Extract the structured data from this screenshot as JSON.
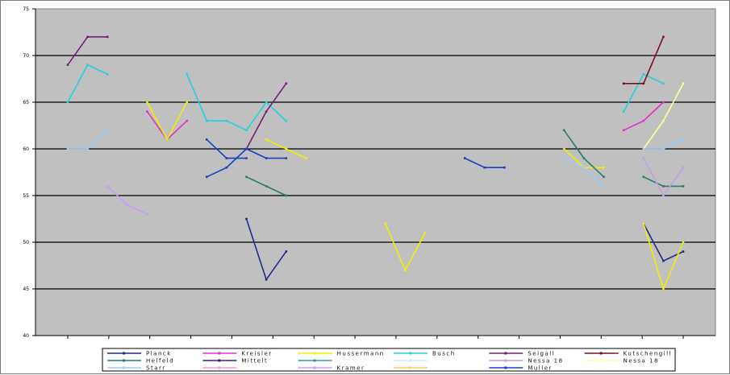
{
  "chart_data": {
    "type": "line",
    "title": "",
    "xlabel": "",
    "ylabel": "",
    "ylim": [
      40,
      75
    ],
    "y_ticks": [
      "40",
      "45",
      "50",
      "55",
      "60",
      "65",
      "70",
      "75"
    ],
    "x_ticks": [
      "",
      "",
      "",
      "",
      "",
      "",
      "",
      "",
      "",
      "",
      "",
      "",
      "",
      "",
      "",
      ""
    ],
    "grid": true,
    "background": "#c0c0c0",
    "legend_position": "bottom",
    "series": [
      {
        "name": "Planck",
        "color": "#1f2a8a",
        "marker": "triangle",
        "points": [
          [
            9.0,
            52.5
          ],
          [
            10.0,
            46.0
          ],
          [
            11.0,
            49.0
          ],
          [
            29.0,
            52.0
          ],
          [
            30.0,
            48.0
          ],
          [
            31.0,
            49.0
          ]
        ]
      },
      {
        "name": "Kreisler",
        "color": "#e033cc",
        "points": [
          [
            4.0,
            64.0
          ],
          [
            5.0,
            61.0
          ],
          [
            6.0,
            63.0
          ],
          [
            28.0,
            62.0
          ],
          [
            29.0,
            63.0
          ],
          [
            30.0,
            65.0
          ]
        ]
      },
      {
        "name": "Hussermann",
        "color": "#f0ef00",
        "points": [
          [
            4.0,
            65.0
          ],
          [
            5.0,
            61.0
          ],
          [
            6.0,
            65.0
          ],
          [
            10.0,
            61.0
          ],
          [
            11.0,
            60.0
          ],
          [
            12.0,
            59.0
          ],
          [
            16.0,
            52.0
          ],
          [
            17.0,
            47.0
          ],
          [
            18.0,
            51.0
          ],
          [
            25.0,
            60.0
          ],
          [
            26.0,
            58.0
          ],
          [
            27.0,
            58.0
          ],
          [
            29.0,
            52.0
          ],
          [
            30.0,
            45.0
          ],
          [
            31.0,
            50.0
          ]
        ]
      },
      {
        "name": "Busch",
        "color": "#22d2e0",
        "points": [
          [
            0.0,
            65.0
          ],
          [
            1.0,
            69.0
          ],
          [
            2.0,
            68.0
          ],
          [
            6.0,
            68.0
          ],
          [
            7.0,
            63.0
          ],
          [
            8.0,
            63.0
          ],
          [
            9.0,
            62.0
          ],
          [
            10.0,
            65.0
          ],
          [
            11.0,
            63.0
          ],
          [
            28.0,
            64.0
          ],
          [
            29.0,
            68.0
          ],
          [
            30.0,
            67.0
          ]
        ]
      },
      {
        "name": "Seigall",
        "color": "#7a1a7a",
        "points": [
          [
            0.0,
            69.0
          ],
          [
            1.0,
            72.0
          ],
          [
            2.0,
            72.0
          ],
          [
            9.0,
            60.0
          ],
          [
            10.0,
            64.0
          ],
          [
            11.0,
            67.0
          ]
        ]
      },
      {
        "name": "Kutschengill",
        "color": "#7a1020",
        "points": [
          [
            28.0,
            67.0
          ],
          [
            29.0,
            67.0
          ],
          [
            30.0,
            72.0
          ]
        ]
      },
      {
        "name": "Helfeld",
        "color": "#2a7a6a",
        "points": [
          [
            9.0,
            57.0
          ],
          [
            10.0,
            56.0
          ],
          [
            11.0,
            55.0
          ],
          [
            25.0,
            62.0
          ],
          [
            26.0,
            59.0
          ],
          [
            27.0,
            57.0
          ],
          [
            29.0,
            57.0
          ],
          [
            30.0,
            56.0
          ],
          [
            31.0,
            56.0
          ]
        ]
      },
      {
        "name": "Mittelt",
        "color": "#3a1a8a",
        "points": []
      },
      {
        "name": "",
        "color": "#2aa0a0",
        "points": []
      },
      {
        "name": "",
        "color": "#c8f0f8",
        "points": []
      },
      {
        "name": "Nessa 18",
        "color": "#c3a0e0",
        "points": [
          [
            29.0,
            59.0
          ],
          [
            30.0,
            55.0
          ],
          [
            31.0,
            58.0
          ]
        ]
      },
      {
        "name": "Nessa 18",
        "color": "#ffff99",
        "points": [
          [
            29.0,
            60.0
          ],
          [
            30.0,
            63.0
          ],
          [
            31.0,
            67.0
          ]
        ]
      },
      {
        "name": "Starr",
        "color": "#99ccff",
        "points": [
          [
            0.0,
            60.0
          ],
          [
            1.0,
            60.0
          ],
          [
            2.0,
            62.0
          ],
          [
            7.0,
            57.0
          ],
          [
            8.0,
            58.0
          ],
          [
            9.0,
            60.0
          ],
          [
            25.0,
            59.0
          ],
          [
            26.0,
            58.0
          ],
          [
            27.0,
            56.0
          ],
          [
            29.0,
            60.0
          ],
          [
            30.0,
            60.0
          ],
          [
            31.0,
            61.0
          ]
        ]
      },
      {
        "name": "",
        "color": "#ff99cc",
        "points": []
      },
      {
        "name": "Kramer",
        "color": "#cc99ff",
        "points": [
          [
            2.0,
            56.0
          ],
          [
            3.0,
            54.0
          ],
          [
            4.0,
            53.0
          ]
        ]
      },
      {
        "name": "",
        "color": "#ffcc66",
        "points": []
      },
      {
        "name": "Muller",
        "color": "#1a40c0",
        "points": [
          [
            7.0,
            57.0
          ],
          [
            8.0,
            58.0
          ],
          [
            9.0,
            60.0
          ],
          [
            10.0,
            59.0
          ],
          [
            11.0,
            59.0
          ],
          [
            20.0,
            59.0
          ],
          [
            21.0,
            58.0
          ],
          [
            22.0,
            58.0
          ],
          [
            7.0,
            61.0
          ],
          [
            8.0,
            59.0
          ],
          [
            9.0,
            59.0
          ]
        ]
      }
    ]
  }
}
